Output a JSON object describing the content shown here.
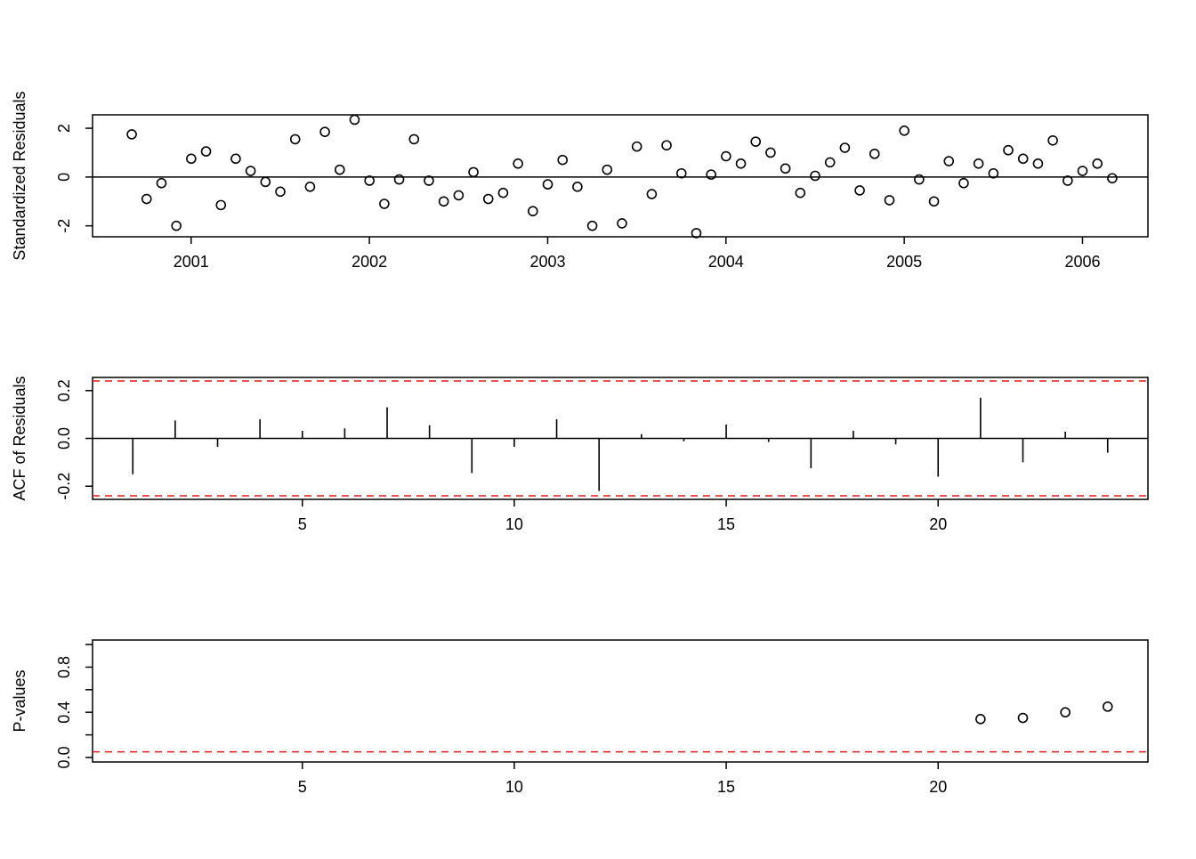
{
  "chart_data": [
    {
      "type": "scatter",
      "ylabel": "Standardized Residuals",
      "xlabel": "",
      "title": "",
      "xlim": [
        2000.447,
        2006.367
      ],
      "ylim": [
        -2.45,
        2.55
      ],
      "x_ticks": [
        2001,
        2002,
        2003,
        2004,
        2005,
        2006
      ],
      "x_tick_labels": [
        "2001",
        "2002",
        "2003",
        "2004",
        "2005",
        "2006"
      ],
      "y_ticks": [
        -2,
        0,
        2
      ],
      "y_tick_labels": [
        "-2",
        "0",
        "2"
      ],
      "reference_line": 0,
      "x_start": 2000.667,
      "x_step": 0.08333,
      "values": [
        1.75,
        -0.9,
        -0.25,
        -2.0,
        0.75,
        1.05,
        -1.15,
        0.75,
        0.25,
        -0.2,
        -0.6,
        1.55,
        -0.4,
        1.85,
        0.3,
        2.35,
        -0.15,
        -1.1,
        -0.1,
        1.55,
        -0.15,
        -1.0,
        -0.75,
        0.2,
        -0.9,
        -0.65,
        0.55,
        -1.4,
        -0.3,
        0.7,
        -0.4,
        -2.0,
        0.3,
        -1.9,
        1.25,
        -0.7,
        1.3,
        0.15,
        -2.3,
        0.1,
        0.85,
        0.55,
        1.45,
        1.0,
        0.35,
        -0.65,
        0.05,
        0.6,
        1.2,
        -0.55,
        0.95,
        -0.95,
        1.9,
        -0.1,
        -1.0,
        0.65,
        -0.25,
        0.55,
        0.15,
        1.1,
        0.75,
        0.55,
        1.5,
        -0.15,
        0.25,
        0.55,
        -0.05
      ]
    },
    {
      "type": "bar",
      "ylabel": "ACF of Residuals",
      "xlabel": "",
      "title": "",
      "xlim": [
        0.05,
        24.95
      ],
      "ylim": [
        -0.255,
        0.255
      ],
      "x_ticks": [
        5,
        10,
        15,
        20
      ],
      "x_tick_labels": [
        "5",
        "10",
        "15",
        "20"
      ],
      "y_ticks": [
        -0.2,
        0.0,
        0.2
      ],
      "y_tick_labels": [
        "-0.2",
        "0.0",
        "0.2"
      ],
      "reference_line": 0,
      "confidence_bounds": [
        -0.24,
        0.24
      ],
      "lags": [
        1,
        2,
        3,
        4,
        5,
        6,
        7,
        8,
        9,
        10,
        11,
        12,
        13,
        14,
        15,
        16,
        17,
        18,
        19,
        20,
        21,
        22,
        23,
        24
      ],
      "values": [
        -0.15,
        0.075,
        -0.035,
        0.08,
        0.032,
        0.042,
        0.13,
        0.055,
        -0.145,
        -0.035,
        0.08,
        -0.22,
        0.018,
        -0.012,
        0.058,
        -0.015,
        -0.125,
        0.032,
        -0.025,
        -0.16,
        0.17,
        -0.1,
        0.028,
        -0.06
      ]
    },
    {
      "type": "scatter",
      "ylabel": "P-values",
      "xlabel": "",
      "title": "",
      "xlim": [
        0.05,
        24.95
      ],
      "ylim": [
        -0.04,
        1.04
      ],
      "x_ticks": [
        5,
        10,
        15,
        20
      ],
      "x_tick_labels": [
        "5",
        "10",
        "15",
        "20"
      ],
      "y_ticks": [
        0.0,
        0.2,
        0.4,
        0.6,
        0.8,
        1.0
      ],
      "y_tick_labels": [
        "0.0",
        "",
        "0.4",
        "",
        "0.8",
        ""
      ],
      "reference_line": 0.05,
      "x": [
        21,
        22,
        23,
        24
      ],
      "values": [
        0.34,
        0.35,
        0.4,
        0.45
      ]
    }
  ],
  "colors": {
    "line": "#000000",
    "threshold": "#e31a1c"
  }
}
